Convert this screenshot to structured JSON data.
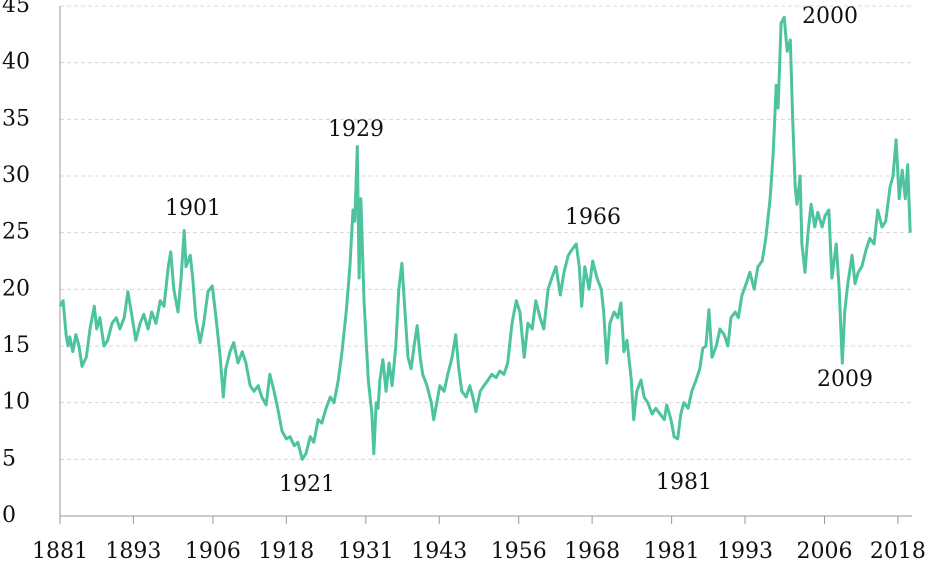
{
  "chart_data": {
    "type": "line",
    "x": [
      1881.0,
      1881.5,
      1882.0,
      1882.3,
      1882.6,
      1883.1,
      1883.6,
      1884.1,
      1884.6,
      1885.3,
      1885.9,
      1886.6,
      1887.0,
      1887.5,
      1888.2,
      1888.8,
      1889.5,
      1890.2,
      1890.8,
      1891.5,
      1892.1,
      1892.8,
      1893.4,
      1894.1,
      1894.7,
      1895.4,
      1896.0,
      1896.7,
      1897.4,
      1898.0,
      1898.7,
      1899.1,
      1899.6,
      1900.3,
      1900.8,
      1901.3,
      1901.6,
      1902.3,
      1902.7,
      1903.2,
      1903.9,
      1904.5,
      1905.2,
      1905.9,
      1906.5,
      1907.2,
      1907.7,
      1908.1,
      1908.8,
      1909.4,
      1910.1,
      1910.8,
      1911.4,
      1912.1,
      1912.7,
      1913.4,
      1914.0,
      1914.7,
      1915.3,
      1916.0,
      1916.6,
      1917.3,
      1918.0,
      1918.6,
      1919.3,
      1919.9,
      1920.6,
      1921.2,
      1921.9,
      1922.5,
      1923.2,
      1923.8,
      1924.5,
      1925.2,
      1925.8,
      1926.5,
      1927.1,
      1927.8,
      1928.4,
      1928.9,
      1929.2,
      1929.6,
      1929.9,
      1930.2,
      1930.7,
      1931.4,
      1932.0,
      1932.3,
      1932.7,
      1933.0,
      1933.3,
      1933.8,
      1934.3,
      1934.8,
      1935.3,
      1935.9,
      1936.4,
      1936.9,
      1937.4,
      1937.9,
      1938.4,
      1938.9,
      1939.4,
      1939.9,
      1940.3,
      1941.0,
      1941.7,
      1942.1,
      1942.6,
      1943.1,
      1943.8,
      1944.4,
      1945.1,
      1945.7,
      1946.2,
      1946.7,
      1947.4,
      1948.0,
      1948.5,
      1949.0,
      1949.7,
      1950.3,
      1951.0,
      1951.6,
      1952.3,
      1952.9,
      1953.6,
      1954.2,
      1954.9,
      1955.6,
      1956.2,
      1956.9,
      1957.5,
      1958.2,
      1958.8,
      1959.5,
      1960.1,
      1960.8,
      1961.4,
      1962.1,
      1962.8,
      1963.4,
      1964.1,
      1964.7,
      1965.4,
      1965.9,
      1966.3,
      1966.8,
      1967.5,
      1968.1,
      1968.8,
      1969.5,
      1969.9,
      1970.4,
      1970.9,
      1971.6,
      1972.2,
      1972.7,
      1973.2,
      1973.7,
      1974.4,
      1974.8,
      1975.3,
      1976.0,
      1976.5,
      1977.1,
      1977.8,
      1978.4,
      1979.1,
      1979.8,
      1980.2,
      1980.9,
      1981.4,
      1982.0,
      1982.5,
      1983.0,
      1983.7,
      1984.3,
      1985.0,
      1985.6,
      1986.1,
      1986.6,
      1987.1,
      1987.6,
      1988.3,
      1988.9,
      1989.6,
      1990.2,
      1990.7,
      1991.4,
      1991.9,
      1992.5,
      1993.2,
      1993.8,
      1994.5,
      1995.1,
      1995.8,
      1996.4,
      1997.1,
      1997.6,
      1998.1,
      1998.4,
      1998.9,
      1999.4,
      1999.9,
      2000.4,
      2000.8,
      2001.2,
      2001.5,
      2002.0,
      2002.3,
      2002.8,
      2003.3,
      2003.8,
      2004.4,
      2004.9,
      2005.6,
      2006.1,
      2006.7,
      2007.2,
      2007.9,
      2008.4,
      2008.9,
      2009.3,
      2009.8,
      2010.5,
      2011.0,
      2011.5,
      2012.1,
      2012.8,
      2013.4,
      2014.1,
      2014.7,
      2015.4,
      2016.0,
      2016.7,
      2017.2,
      2017.7,
      2018.2,
      2018.7,
      2019.2,
      2019.6,
      2020.0
    ],
    "series": [
      {
        "color": "#4dc3a0",
        "values": [
          18.5,
          19,
          16,
          15,
          15.8,
          14.5,
          16,
          15,
          13.2,
          14,
          16.5,
          18.5,
          16.5,
          17.5,
          15,
          15.5,
          17,
          17.5,
          16.5,
          17.5,
          19.8,
          17.5,
          15.5,
          17,
          17.8,
          16.5,
          18,
          17,
          19,
          18.5,
          22,
          23.3,
          20,
          18,
          21,
          25.2,
          22,
          23,
          21,
          17.5,
          15.3,
          17,
          19.8,
          20.3,
          17.5,
          14,
          10.5,
          13,
          14.5,
          15.3,
          13.5,
          14.5,
          13.5,
          11.5,
          11,
          11.5,
          10.5,
          9.8,
          12.5,
          11,
          9.5,
          7.5,
          6.8,
          7,
          6.2,
          6.5,
          5,
          5.5,
          7,
          6.5,
          8.5,
          8.2,
          9.5,
          10.5,
          10,
          12,
          14.5,
          18,
          22,
          27,
          26,
          32.6,
          21,
          28,
          19,
          12,
          9,
          5.5,
          10,
          9.5,
          12,
          13.8,
          11,
          13.5,
          11.5,
          15,
          20,
          22.3,
          18,
          14,
          13,
          15,
          16.8,
          14,
          12.5,
          11.5,
          10,
          8.5,
          10,
          11.5,
          11,
          12.5,
          14,
          16,
          13,
          11,
          10.5,
          11.5,
          10.5,
          9.2,
          11,
          11.5,
          12,
          12.5,
          12.2,
          12.8,
          12.5,
          13.5,
          17,
          19,
          18,
          14,
          17,
          16.5,
          19,
          17.5,
          16.5,
          20,
          21,
          22,
          19.5,
          21.5,
          23,
          23.5,
          24,
          22,
          18.5,
          22,
          20,
          22.5,
          21,
          20,
          18,
          13.5,
          17,
          18,
          17.5,
          18.8,
          14.5,
          15.5,
          12,
          8.5,
          11,
          12,
          10.5,
          10,
          9,
          9.5,
          9,
          8.5,
          9.8,
          8.5,
          7,
          6.8,
          9,
          10,
          9.5,
          11,
          12,
          13,
          14.8,
          15,
          18.2,
          14,
          15,
          16.5,
          16,
          15,
          17.5,
          18,
          17.5,
          19.5,
          20.5,
          21.5,
          20,
          22,
          22.5,
          24.5,
          28,
          32,
          38,
          36,
          43.5,
          44,
          41,
          42,
          35,
          29,
          27.5,
          30,
          24,
          21.5,
          25,
          27.5,
          25.5,
          26.8,
          25.5,
          26.5,
          27,
          21,
          24,
          20,
          13.5,
          18,
          20.5,
          23,
          20.5,
          21.5,
          22,
          23.5,
          24.5,
          24,
          27,
          25.5,
          26,
          29,
          30,
          33.2,
          28,
          30.5,
          28,
          31,
          25
        ]
      }
    ],
    "xlim": [
      1881,
      2020.3
    ],
    "xticks": [
      1881,
      1893,
      1906,
      1918,
      1931,
      1943,
      1956,
      1968,
      1981,
      1993,
      2006,
      2018
    ],
    "ylim": [
      0,
      45
    ],
    "yticks": [
      0,
      5,
      10,
      15,
      20,
      25,
      30,
      35,
      40,
      45
    ],
    "grid": true,
    "annotations": [
      "1901",
      "1921",
      "1929",
      "1966",
      "1981",
      "2000",
      "2009"
    ]
  }
}
